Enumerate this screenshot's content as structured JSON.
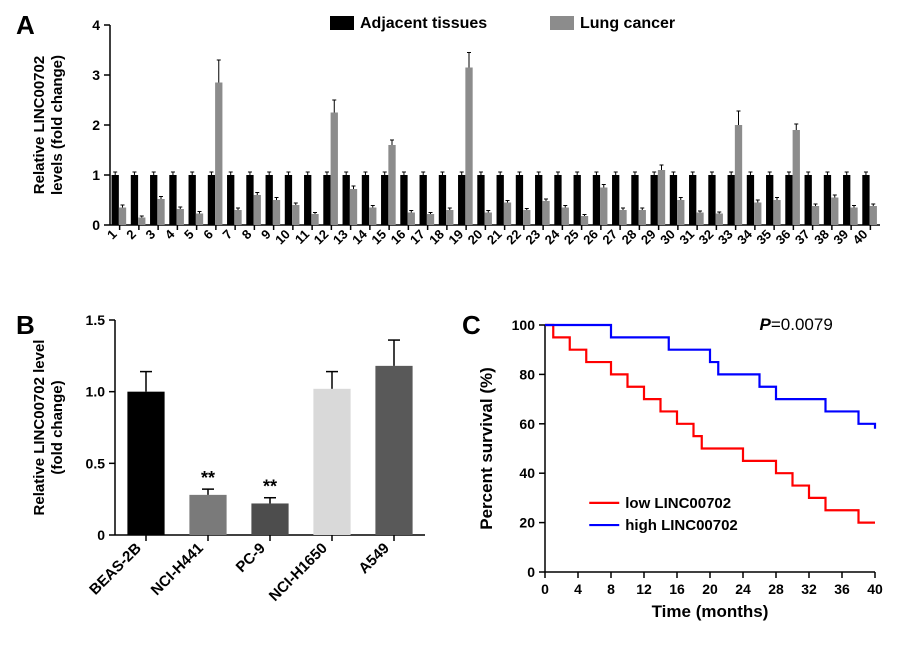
{
  "panelA": {
    "label": "A",
    "ylabel": "Relative LINC00702 levels (fold change)",
    "legend": {
      "adj": "Adjacent tissues",
      "lc": "Lung cancer"
    },
    "colors": {
      "adj": "#000000",
      "lc": "#8c8c8c",
      "err": "#000000"
    },
    "ylim": [
      0,
      4
    ],
    "yticks": [
      0,
      1,
      2,
      3,
      4
    ],
    "label_fontsize": 15,
    "tick_fontsize": 14,
    "n": 40,
    "adj_values": [
      1,
      1,
      1,
      1,
      1,
      1,
      1,
      1,
      1,
      1,
      1,
      1,
      1,
      1,
      1,
      1,
      1,
      1,
      1,
      1,
      1,
      1,
      1,
      1,
      1,
      1,
      1,
      1,
      1,
      1,
      1,
      1,
      1,
      1,
      1,
      1,
      1,
      1,
      1,
      1
    ],
    "adj_err": [
      0.06,
      0.06,
      0.06,
      0.06,
      0.06,
      0.06,
      0.06,
      0.06,
      0.06,
      0.06,
      0.06,
      0.06,
      0.06,
      0.06,
      0.06,
      0.06,
      0.06,
      0.06,
      0.06,
      0.06,
      0.06,
      0.06,
      0.06,
      0.06,
      0.06,
      0.06,
      0.06,
      0.06,
      0.06,
      0.06,
      0.06,
      0.06,
      0.06,
      0.06,
      0.06,
      0.06,
      0.06,
      0.06,
      0.06,
      0.06
    ],
    "lc_values": [
      0.35,
      0.15,
      0.52,
      0.32,
      0.23,
      2.85,
      0.3,
      0.6,
      0.5,
      0.4,
      0.22,
      2.25,
      0.72,
      0.35,
      1.6,
      0.25,
      0.22,
      0.3,
      3.15,
      0.25,
      0.45,
      0.3,
      0.48,
      0.35,
      0.18,
      0.75,
      0.3,
      0.3,
      1.1,
      0.5,
      0.25,
      0.23,
      2.0,
      0.45,
      0.5,
      1.9,
      0.38,
      0.55,
      0.35,
      0.38
    ],
    "lc_err": [
      0.05,
      0.03,
      0.05,
      0.04,
      0.04,
      0.45,
      0.04,
      0.05,
      0.05,
      0.04,
      0.03,
      0.25,
      0.06,
      0.04,
      0.1,
      0.04,
      0.03,
      0.04,
      0.3,
      0.04,
      0.04,
      0.03,
      0.04,
      0.04,
      0.03,
      0.06,
      0.04,
      0.04,
      0.1,
      0.05,
      0.03,
      0.03,
      0.28,
      0.05,
      0.05,
      0.12,
      0.04,
      0.05,
      0.04,
      0.04
    ]
  },
  "panelB": {
    "label": "B",
    "ylabel": "Relative LINC00702 level (fold change)",
    "ylim": [
      0,
      1.5
    ],
    "yticks": [
      0,
      0.5,
      1.0,
      1.5
    ],
    "label_fontsize": 15,
    "tick_fontsize": 14,
    "bar_width": 0.6,
    "bars": [
      {
        "name": "BEAS-2B",
        "value": 1.0,
        "err": 0.14,
        "color": "#000000",
        "sig": ""
      },
      {
        "name": "NCI-H441",
        "value": 0.28,
        "err": 0.04,
        "color": "#7a7a7a",
        "sig": "**"
      },
      {
        "name": "PC-9",
        "value": 0.22,
        "err": 0.04,
        "color": "#4d4d4d",
        "sig": "**"
      },
      {
        "name": "NCI-H1650",
        "value": 1.02,
        "err": 0.12,
        "color": "#d9d9d9",
        "sig": ""
      },
      {
        "name": "A549",
        "value": 1.18,
        "err": 0.18,
        "color": "#595959",
        "sig": ""
      }
    ]
  },
  "panelC": {
    "label": "C",
    "xlabel": "Time (months)",
    "ylabel": "Percent survival (%)",
    "p_text": "P=0.0079",
    "p_prefix": "P",
    "p_rest": "=0.0079",
    "xlim": [
      0,
      40
    ],
    "xticks": [
      0,
      4,
      8,
      12,
      16,
      20,
      24,
      28,
      32,
      36,
      40
    ],
    "ylim": [
      0,
      100
    ],
    "yticks": [
      0,
      20,
      40,
      60,
      80,
      100
    ],
    "label_fontsize": 17,
    "tick_fontsize": 14,
    "line_width": 2.2,
    "series": {
      "low": {
        "label": "low LINC00702",
        "color": "#ff0000",
        "points": [
          [
            0,
            100
          ],
          [
            1,
            95
          ],
          [
            3,
            90
          ],
          [
            5,
            85
          ],
          [
            6,
            85
          ],
          [
            8,
            80
          ],
          [
            10,
            75
          ],
          [
            12,
            70
          ],
          [
            14,
            65
          ],
          [
            16,
            60
          ],
          [
            18,
            55
          ],
          [
            19,
            50
          ],
          [
            22,
            50
          ],
          [
            24,
            45
          ],
          [
            27,
            45
          ],
          [
            28,
            40
          ],
          [
            30,
            35
          ],
          [
            32,
            30
          ],
          [
            34,
            25
          ],
          [
            37,
            25
          ],
          [
            38,
            20
          ],
          [
            40,
            20
          ]
        ]
      },
      "high": {
        "label": "high LINC00702",
        "color": "#0000ff",
        "points": [
          [
            0,
            100
          ],
          [
            7,
            100
          ],
          [
            8,
            95
          ],
          [
            14,
            95
          ],
          [
            15,
            90
          ],
          [
            19,
            90
          ],
          [
            20,
            85
          ],
          [
            21,
            80
          ],
          [
            25,
            80
          ],
          [
            26,
            75
          ],
          [
            28,
            70
          ],
          [
            33,
            70
          ],
          [
            34,
            65
          ],
          [
            37,
            65
          ],
          [
            38,
            60
          ],
          [
            40,
            58
          ]
        ]
      }
    }
  }
}
